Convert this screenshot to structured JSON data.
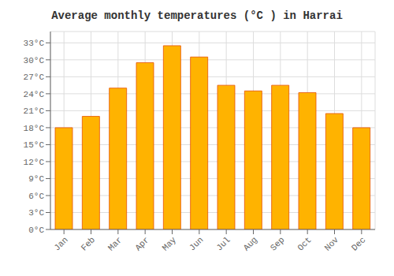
{
  "chart_data": {
    "type": "bar",
    "title": "Average monthly temperatures (°C ) in Harrai",
    "categories": [
      "Jan",
      "Feb",
      "Mar",
      "Apr",
      "May",
      "Jun",
      "Jul",
      "Aug",
      "Sep",
      "Oct",
      "Nov",
      "Dec"
    ],
    "values": [
      18.0,
      20.0,
      25.0,
      29.5,
      32.5,
      30.5,
      25.5,
      24.5,
      25.5,
      24.2,
      20.5,
      18.0
    ],
    "color": "#FFB300",
    "ylim": [
      0,
      35
    ],
    "yticks": [
      {
        "value": 0,
        "label": "0°C"
      },
      {
        "value": 3,
        "label": "3°C"
      },
      {
        "value": 6,
        "label": "6°C"
      },
      {
        "value": 9,
        "label": "9°C"
      },
      {
        "value": 12,
        "label": "12°C"
      },
      {
        "value": 15,
        "label": "15°C"
      },
      {
        "value": 18,
        "label": "18°C"
      },
      {
        "value": 21,
        "label": "21°C"
      },
      {
        "value": 24,
        "label": "24°C"
      },
      {
        "value": 27,
        "label": "27°C"
      },
      {
        "value": 30,
        "label": "30°C"
      },
      {
        "value": 33,
        "label": "33°C"
      }
    ],
    "grid": true
  }
}
